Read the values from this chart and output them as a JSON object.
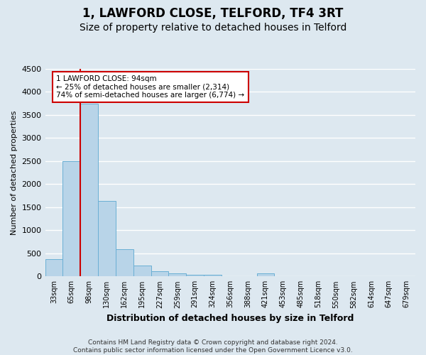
{
  "title1": "1, LAWFORD CLOSE, TELFORD, TF4 3RT",
  "title2": "Size of property relative to detached houses in Telford",
  "xlabel": "Distribution of detached houses by size in Telford",
  "ylabel": "Number of detached properties",
  "footer": "Contains HM Land Registry data © Crown copyright and database right 2024.\nContains public sector information licensed under the Open Government Licence v3.0.",
  "categories": [
    "33sqm",
    "65sqm",
    "98sqm",
    "130sqm",
    "162sqm",
    "195sqm",
    "227sqm",
    "259sqm",
    "291sqm",
    "324sqm",
    "356sqm",
    "388sqm",
    "421sqm",
    "453sqm",
    "485sqm",
    "518sqm",
    "550sqm",
    "582sqm",
    "614sqm",
    "647sqm",
    "679sqm"
  ],
  "values": [
    370,
    2500,
    3750,
    1640,
    590,
    230,
    105,
    65,
    40,
    30,
    0,
    0,
    60,
    0,
    0,
    0,
    0,
    0,
    0,
    0,
    0
  ],
  "bar_color": "#b8d4e8",
  "bar_edge_color": "#6aafd4",
  "ylim": [
    0,
    4500
  ],
  "yticks": [
    0,
    500,
    1000,
    1500,
    2000,
    2500,
    3000,
    3500,
    4000,
    4500
  ],
  "vline_color": "#cc0000",
  "annotation_title": "1 LAWFORD CLOSE: 94sqm",
  "annotation_line1": "← 25% of detached houses are smaller (2,314)",
  "annotation_line2": "74% of semi-detached houses are larger (6,774) →",
  "annotation_box_color": "#cc0000",
  "background_color": "#dde8f0",
  "grid_color": "#ffffff",
  "title_fontsize": 12,
  "subtitle_fontsize": 10,
  "ylabel_fontsize": 8,
  "xlabel_fontsize": 9,
  "footer_fontsize": 6.5
}
